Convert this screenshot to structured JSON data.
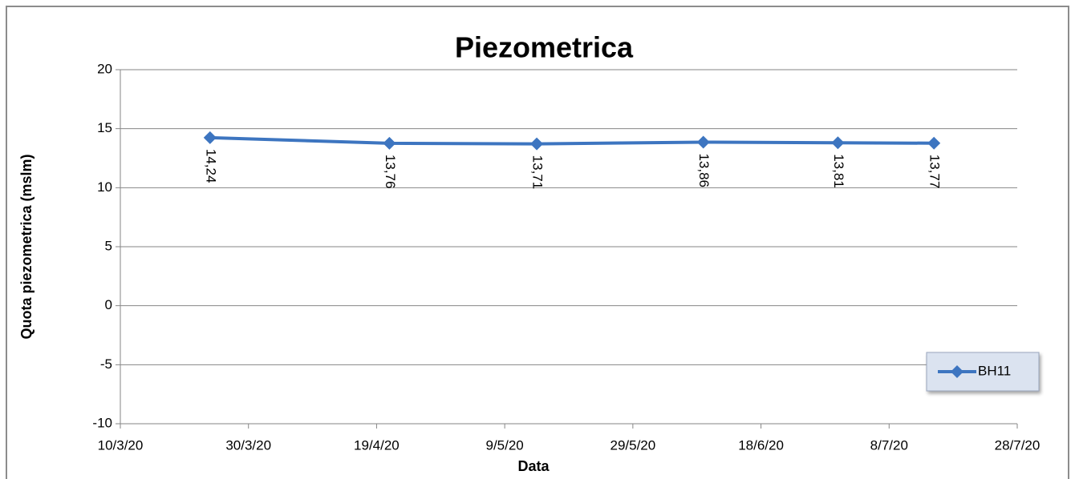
{
  "chart_data": {
    "type": "line",
    "title": "Piezometrica",
    "x_label": "Data",
    "y_label": "Quota piezometrica (mslm)",
    "x": [
      "24/3/20",
      "21/4/20",
      "14/5/20",
      "9/6/20",
      "30/6/20",
      "15/7/20"
    ],
    "series": [
      {
        "name": "BH11",
        "color": "#3d75c0",
        "values": [
          14.24,
          13.76,
          13.71,
          13.86,
          13.81,
          13.77
        ],
        "value_labels": [
          "14,24",
          "13,76",
          "13,71",
          "13,86",
          "13,81",
          "13,77"
        ]
      }
    ],
    "xlim": [
      "10/3/20",
      "28/7/20"
    ],
    "xticks": [
      "10/3/20",
      "30/3/20",
      "19/4/20",
      "9/5/20",
      "29/5/20",
      "18/6/20",
      "8/7/20",
      "28/7/20"
    ],
    "ylim": [
      -10,
      20
    ],
    "yticks": [
      -10,
      -5,
      0,
      5,
      10,
      15,
      20
    ],
    "grid": true,
    "legend": "right"
  }
}
